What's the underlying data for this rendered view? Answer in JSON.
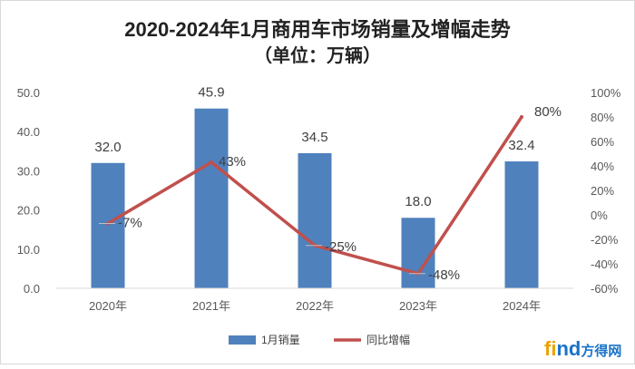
{
  "chart_data": {
    "type": "bar",
    "title": "2020-2024年1月商用车市场销量及增幅走势",
    "subtitle": "（单位：万辆）",
    "categories": [
      "2020年",
      "2021年",
      "2022年",
      "2023年",
      "2024年"
    ],
    "series": [
      {
        "name": "1月销量",
        "type": "bar",
        "axis": "left",
        "color": "#4f81bd",
        "values": [
          32.0,
          45.9,
          34.5,
          18.0,
          32.4
        ],
        "labels": [
          "32.0",
          "45.9",
          "34.5",
          "18.0",
          "32.4"
        ]
      },
      {
        "name": "同比增幅",
        "type": "line",
        "axis": "right",
        "color": "#c0504d",
        "values": [
          -7,
          43,
          -25,
          -48,
          80
        ],
        "labels": [
          "-7%",
          "43%",
          "-25%",
          "-48%",
          "80%"
        ]
      }
    ],
    "y_left": {
      "min": 0,
      "max": 50,
      "step": 10,
      "tick_labels": [
        "0.0",
        "10.0",
        "20.0",
        "30.0",
        "40.0",
        "50.0"
      ]
    },
    "y_right": {
      "min": -60,
      "max": 100,
      "step": 20,
      "tick_labels": [
        "-60%",
        "-40%",
        "-20%",
        "0%",
        "20%",
        "40%",
        "60%",
        "80%",
        "100%"
      ]
    },
    "grid": false,
    "legend_position": "bottom"
  },
  "watermark": {
    "text": "find方得网",
    "colors": {
      "f": "#e8a300",
      "i": "#e8a300",
      "n": "#1a73c8",
      "d": "#1a73c8",
      "cn": "#1a73c8"
    }
  }
}
